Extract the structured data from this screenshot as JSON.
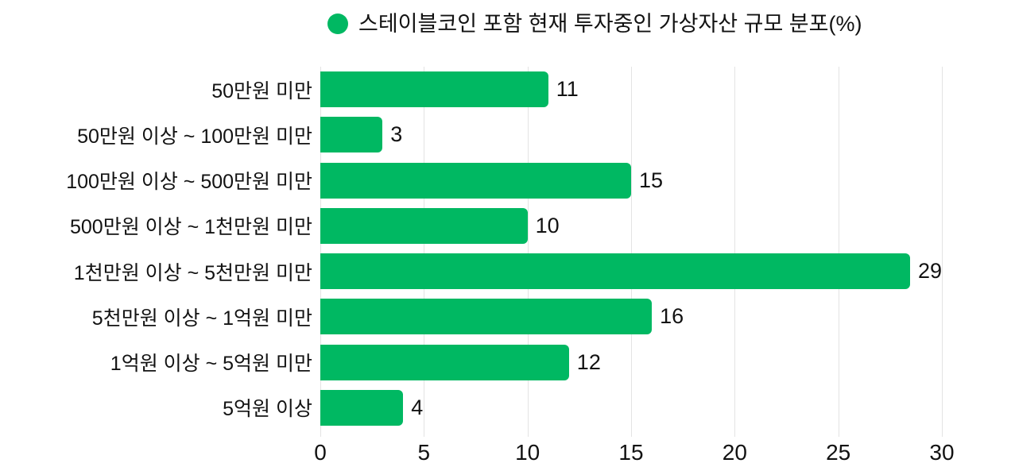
{
  "chart": {
    "legend": {
      "label": "스테이블코인 포함 현재 투자중인 가상자산 규모 분포(%)",
      "marker_color": "#00b862"
    }
  },
  "chart_data": {
    "type": "bar",
    "orientation": "horizontal",
    "title": "스테이블코인 포함 현재 투자중인 가상자산 규모 분포(%)",
    "categories": [
      "50만원 미만",
      "50만원 이상 ~ 100만원 미만",
      "100만원 이상 ~ 500만원 미만",
      "500만원 이상 ~ 1천만원 미만",
      "1천만원 이상 ~ 5천만원 미만",
      "5천만원 이상 ~ 1억원 미만",
      "1억원 이상 ~ 5억원 미만",
      "5억원 이상"
    ],
    "values": [
      11,
      3,
      15,
      10,
      29,
      16,
      12,
      4
    ],
    "xlabel": "",
    "ylabel": "",
    "xlim": [
      0,
      30
    ],
    "xticks": [
      0,
      5,
      10,
      15,
      20,
      25,
      30
    ],
    "bar_color": "#00b862",
    "gridline_color": "#e3e3e3",
    "text_color": "#121212",
    "value_labels_shown": true,
    "grid": true,
    "legend_position": "top"
  }
}
